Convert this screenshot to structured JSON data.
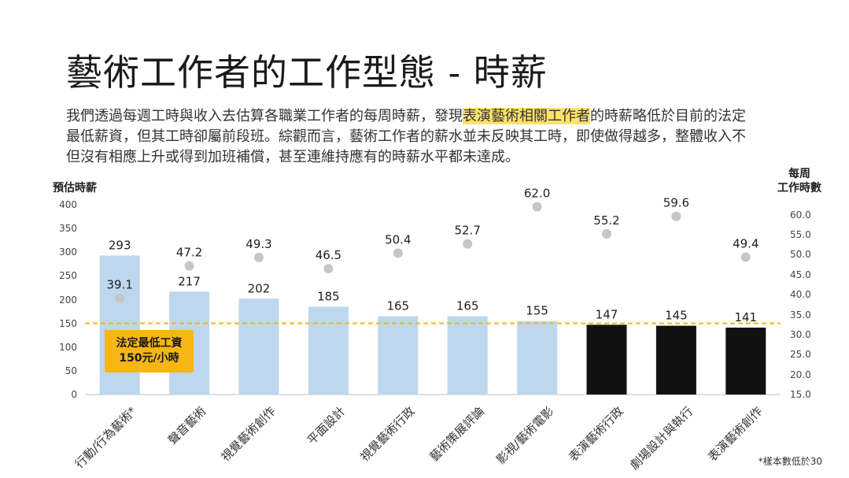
{
  "title": "藝術工作者的工作型態 - 時薪",
  "intro": {
    "part1": "我們透過每週工時與收入去估算各職業工作者的每周時薪，發現",
    "highlight": "表演藝術相關工作者",
    "part2": "的時薪略低於目前的法定最低薪資，但其工時卻屬前段班。綜觀而言，藝術工作者的薪水並未反映其工時，即使做得越多，整體收入不但沒有相應上升或得到加班補償，甚至連維持應有的時薪水平都未達成。"
  },
  "callout": {
    "line1": "法定最低工資",
    "line2": "150元/小時"
  },
  "footnote": "*樣本數低於30",
  "colors": {
    "bar_light": "#bdd7ee",
    "bar_dark": "#111111",
    "dot": "#c6c6c6",
    "min_wage_line": "#f7b616",
    "highlight": "#fde26b"
  },
  "chart_data": {
    "type": "bar",
    "categories": [
      "行動/行為藝術*",
      "聲音藝術",
      "視覺藝術創作",
      "平面設計",
      "視覺藝術行政",
      "藝術策展評論",
      "影視/藝術電影",
      "表演藝術行政",
      "劇場設計與執行",
      "表演藝術創作"
    ],
    "series": [
      {
        "name": "預估時薪",
        "kind": "bar",
        "axis": "left",
        "values": [
          293,
          217,
          202,
          185,
          165,
          165,
          155,
          147,
          145,
          141
        ],
        "bar_colors": [
          "light",
          "light",
          "light",
          "light",
          "light",
          "light",
          "light",
          "dark",
          "dark",
          "dark"
        ]
      },
      {
        "name": "每周工作時數",
        "kind": "dot",
        "axis": "right",
        "values": [
          39.1,
          47.2,
          49.3,
          46.5,
          50.4,
          52.7,
          62.0,
          55.2,
          59.6,
          49.4
        ],
        "labels": [
          "39.1",
          "47.2",
          "49.3",
          "46.5",
          "50.4",
          "52.7",
          "62.0",
          "55.2",
          "59.6",
          "49.4"
        ]
      }
    ],
    "reference_line": {
      "axis": "left",
      "value": 150
    },
    "ylabel": "預估時薪",
    "y2label_line1": "每周",
    "y2label_line2": "工作時數",
    "ylim": [
      0,
      400
    ],
    "y_ticks": [
      "0",
      "50",
      "100",
      "150",
      "200",
      "250",
      "300",
      "350",
      "400"
    ],
    "y2lim": [
      15,
      62.5
    ],
    "y2_ticks": [
      "15.0",
      "20.0",
      "25.0",
      "30.0",
      "35.0",
      "40.0",
      "45.0",
      "50.0",
      "55.0",
      "60.0"
    ],
    "grid": false,
    "legend": "none"
  }
}
